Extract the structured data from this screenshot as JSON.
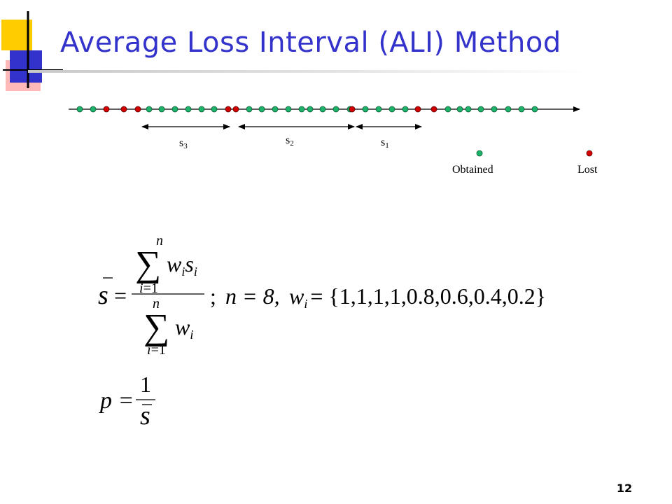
{
  "slide": {
    "title": "Average Loss Interval (ALI) Method",
    "page_number": "12"
  },
  "timeline": {
    "packets": [
      "o",
      "o",
      "l",
      "l",
      "l",
      "o",
      "o",
      "o",
      "o",
      "o",
      "o",
      "l",
      "l",
      "o",
      "o",
      "o",
      "o",
      "o",
      "o",
      "o",
      "o",
      "o",
      "l",
      "o",
      "o",
      "o",
      "o",
      "l",
      "l",
      "o",
      "o",
      "o",
      "o",
      "o",
      "o",
      "o",
      "o"
    ],
    "intervals": [
      {
        "name": "s",
        "sub": "3"
      },
      {
        "name": "s",
        "sub": "2"
      },
      {
        "name": "s",
        "sub": "1"
      }
    ]
  },
  "legend": {
    "obtained": "Obtained",
    "lost": "Lost"
  },
  "colors": {
    "title": "#3333cc",
    "obtained": "#1db36b",
    "lost": "#d40000",
    "deco_yellow": "#ffcc00",
    "deco_blue": "#3333cc",
    "deco_red": "#ff6666"
  },
  "formula": {
    "n_def": "n = 8,",
    "weights_lhs": "w",
    "weights_sub": "i",
    "weights_rhs": "= {1,1,1,1,0.8,0.6,0.4,0.2}",
    "p_lhs": "p ="
  }
}
